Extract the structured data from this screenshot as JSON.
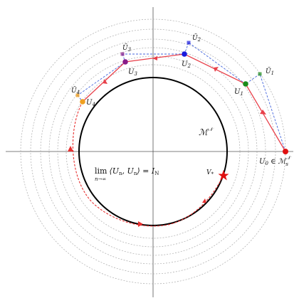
{
  "labels": {
    "u_tilde_1": "Ũ",
    "u_tilde_1_sub": "1",
    "u_tilde_2": "Ũ",
    "u_tilde_2_sub": "2",
    "u_tilde_3": "Ũ",
    "u_tilde_3_sub": "3",
    "u_tilde_4": "Ũ",
    "u_tilde_4_sub": "4",
    "u1": "U",
    "u1_sub": "1",
    "u2": "U",
    "u2_sub": "2",
    "u3": "U",
    "u3_sub": "3",
    "u4": "U",
    "u4_sub": "4",
    "u0": "U",
    "u0_sub": "0",
    "u0_rest": " ∈ ℳ",
    "u0_set_sub": "s",
    "u0_set_sup": "𝒩",
    "manifold": "ℳ",
    "manifold_sup": "𝒩",
    "v_star": "V",
    "v_star_sub": "*",
    "limit_main": "lim",
    "limit_sub": "n→∞",
    "limit_rest": "⟨U",
    "limit_n1": "n",
    "limit_mid": ", U",
    "limit_n2": "n",
    "limit_end": "⟩ = I",
    "limit_N": "N"
  },
  "colors": {
    "iterate_line": "#e8404a",
    "projection_line": "#4466dd",
    "manifold": "#000000",
    "guide_circles": "#aaaaaa",
    "trajectory": "#e83030",
    "u0_point": "#e01010",
    "u1_point": "#1a8a1a",
    "u2_point": "#1a1adc",
    "u3_point": "#881a88",
    "u4_point": "#f0a020",
    "v_star": "#e01010"
  }
}
